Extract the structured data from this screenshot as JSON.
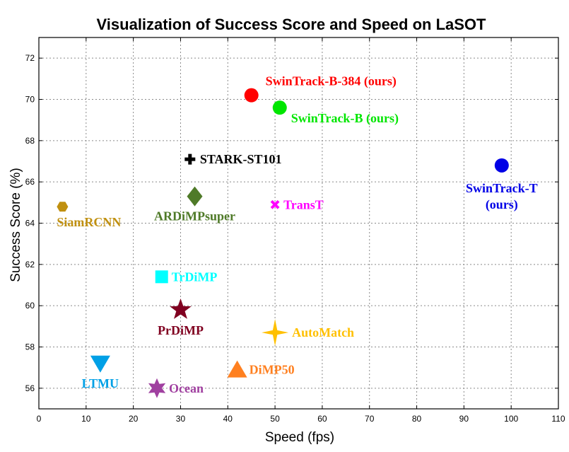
{
  "chart_data": {
    "type": "scatter",
    "title": "Visualization of Success Score and Speed on LaSOT",
    "xlabel": "Speed (fps)",
    "ylabel": "Success Score (%)",
    "xlim": [
      0,
      110
    ],
    "ylim": [
      55,
      73
    ],
    "xticks": [
      0,
      10,
      20,
      30,
      40,
      50,
      60,
      70,
      80,
      90,
      100,
      110
    ],
    "yticks": [
      56,
      58,
      60,
      62,
      64,
      66,
      68,
      70,
      72
    ],
    "grid": true,
    "points": [
      {
        "label": "SwinTrack-B-384 (ours)",
        "x": 45,
        "y": 70.2,
        "marker": "circle",
        "color": "#ff0000"
      },
      {
        "label": "SwinTrack-B (ours)",
        "x": 51,
        "y": 69.6,
        "marker": "circle",
        "color": "#00e600"
      },
      {
        "label": "STARK-ST101",
        "x": 32,
        "y": 67.1,
        "marker": "plus",
        "color": "#000000"
      },
      {
        "label": "SwinTrack-T (ours)",
        "x": 98,
        "y": 66.8,
        "marker": "circle",
        "color": "#0000e6"
      },
      {
        "label": "ARDiMPsuper",
        "x": 33,
        "y": 65.3,
        "marker": "diamond",
        "color": "#4f7a28"
      },
      {
        "label": "TransT",
        "x": 50,
        "y": 64.9,
        "marker": "x",
        "color": "#ff00ff"
      },
      {
        "label": "SiamRCNN",
        "x": 5,
        "y": 64.8,
        "marker": "hexagon",
        "color": "#c09010"
      },
      {
        "label": "TrDiMP",
        "x": 26,
        "y": 61.4,
        "marker": "square",
        "color": "#00ffff"
      },
      {
        "label": "PrDiMP",
        "x": 30,
        "y": 59.8,
        "marker": "star5",
        "color": "#800020"
      },
      {
        "label": "AutoMatch",
        "x": 50,
        "y": 58.7,
        "marker": "star4",
        "color": "#ffc000"
      },
      {
        "label": "LTMU",
        "x": 13,
        "y": 57.2,
        "marker": "triangle-down",
        "color": "#00a0e6"
      },
      {
        "label": "DiMP50",
        "x": 42,
        "y": 56.9,
        "marker": "triangle-up",
        "color": "#ff8020"
      },
      {
        "label": "Ocean",
        "x": 25,
        "y": 56.0,
        "marker": "star6",
        "color": "#a040a0"
      }
    ]
  }
}
